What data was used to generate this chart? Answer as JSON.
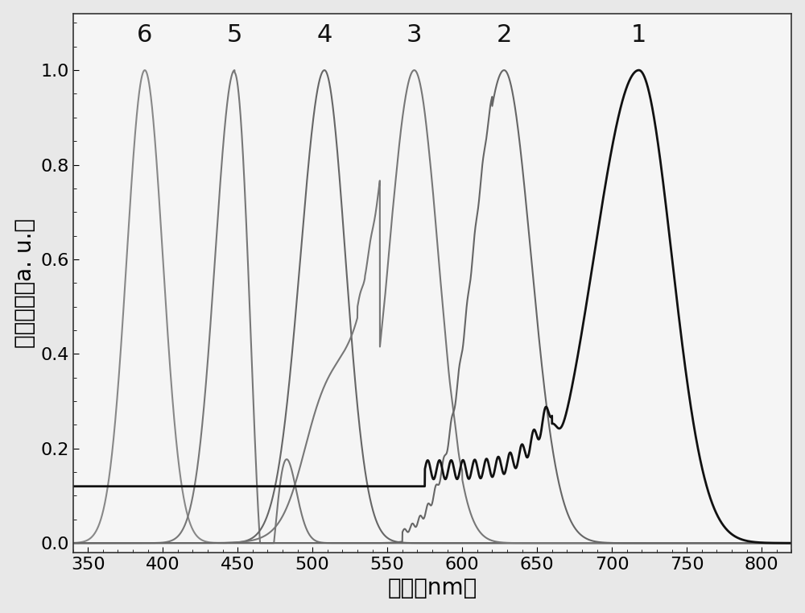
{
  "xlabel": "波长（nm）",
  "ylabel": "衍射强度（a. u.）",
  "xlim": [
    340,
    820
  ],
  "ylim": [
    -0.02,
    1.12
  ],
  "xticks": [
    350,
    400,
    450,
    500,
    550,
    600,
    650,
    700,
    750,
    800
  ],
  "yticks": [
    0.0,
    0.2,
    0.4,
    0.6,
    0.8,
    1.0
  ],
  "background_color": "#e8e8e8",
  "plot_bg_color": "#f5f5f5",
  "label_fontsize": 20,
  "tick_fontsize": 16,
  "number_fontsize": 22
}
